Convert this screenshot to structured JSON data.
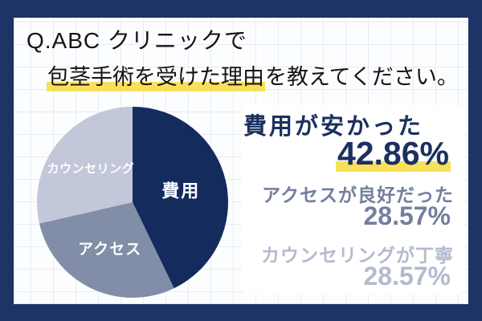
{
  "frame": {
    "border_color": "#1E3366",
    "paper_color": "#FCFDFE",
    "grid_line_color": "#E7ECF3",
    "accent_highlight_color": "#F8E05A"
  },
  "title": {
    "line1": "Q.ABC クリニックで",
    "line2_highlight": "包茎手術を受けた理由",
    "line2_rest": "を教えてください。",
    "text_color": "#141414"
  },
  "chart_data": {
    "type": "pie",
    "title": "Q.ABC クリニックで包茎手術を受けた理由を教えてください。",
    "labels": [
      "費用",
      "アクセス",
      "カウンセリング"
    ],
    "values": [
      42.86,
      28.57,
      28.57
    ],
    "unit": "%",
    "colors": [
      "#142B5D",
      "#828DA7",
      "#C2C7D9"
    ],
    "label_color": "#FFFFFF",
    "start_angle_deg": 0,
    "direction": "clockwise",
    "legend": "none"
  },
  "results": {
    "items": [
      {
        "label": "費用が安かった",
        "value": "42.86%",
        "color": "#1B3060",
        "highlighted": true
      },
      {
        "label": "アクセスが良好だった",
        "value": "28.57%",
        "color": "#737F9D",
        "highlighted": false
      },
      {
        "label": "カウンセリングが丁寧",
        "value": "28.57%",
        "color": "#B4BACE",
        "highlighted": false
      }
    ]
  }
}
